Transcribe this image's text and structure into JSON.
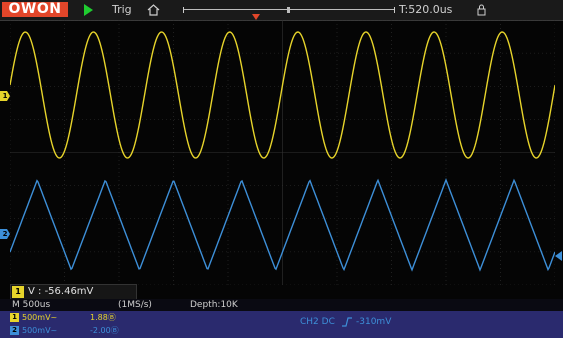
{
  "topbar": {
    "brand": "OWON",
    "trig_label": "Trig",
    "time_position": "T:520.0us"
  },
  "colors": {
    "ch1": "#e7d42b",
    "ch2": "#3d8fd8",
    "brand": "#e2462a",
    "run": "#1fcc30",
    "status_bar": "#2a2a6e"
  },
  "icons": {
    "run": "play-icon",
    "home": "home-icon",
    "lock": "lock-icon",
    "edge": "rising-edge-icon"
  },
  "waveforms": {
    "ch1": {
      "shape": "sine",
      "cycles_visible": 8
    },
    "ch2": {
      "shape": "triangle",
      "cycles_visible": 8
    }
  },
  "channels": [
    {
      "id": "1",
      "marker_label": "1",
      "volts_div": "500mV~",
      "offset": "1.88Ⓑ"
    },
    {
      "id": "2",
      "marker_label": "2",
      "volts_div": "500mV~",
      "offset": "-2.00Ⓑ"
    }
  ],
  "measurement": {
    "tag": "1",
    "text": "V : -56.46mV"
  },
  "status": {
    "timebase": "M 500us",
    "sample_rate": "(1MS/s)",
    "depth": "Depth:10K",
    "trigger": "CH2 DC",
    "trigger_level": "-310mV"
  }
}
